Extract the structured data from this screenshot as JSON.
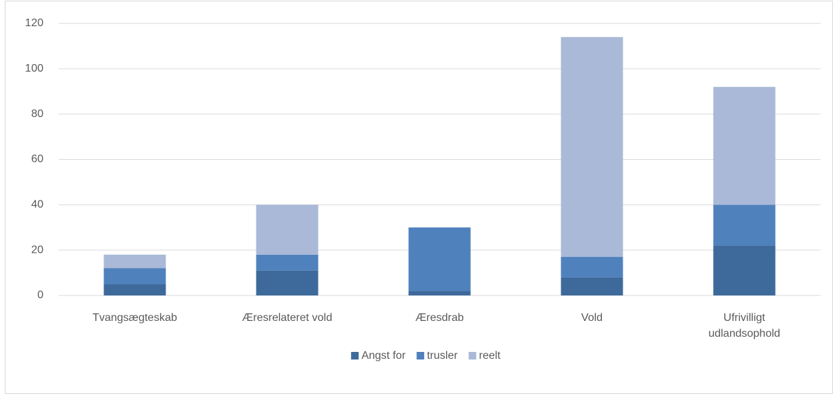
{
  "chart_data": {
    "type": "stacked_bar",
    "categories": [
      "Tvangsægteskab",
      "Æresrelateret vold",
      "Æresdrab",
      "Vold",
      "Ufrivilligt udlandsophold"
    ],
    "series": [
      {
        "name": "Angst for",
        "color": "#3e6a9b",
        "values": [
          5,
          11,
          2,
          8,
          22
        ]
      },
      {
        "name": "trusler",
        "color": "#4f81bd",
        "values": [
          7,
          7,
          28,
          9,
          18
        ]
      },
      {
        "name": "reelt",
        "color": "#a9b9d7",
        "values": [
          6,
          22,
          0,
          97,
          52
        ]
      }
    ],
    "ylim": [
      0,
      120
    ],
    "yticks": [
      0,
      20,
      40,
      60,
      80,
      100,
      120
    ],
    "grid": true,
    "legend": "bottom"
  }
}
